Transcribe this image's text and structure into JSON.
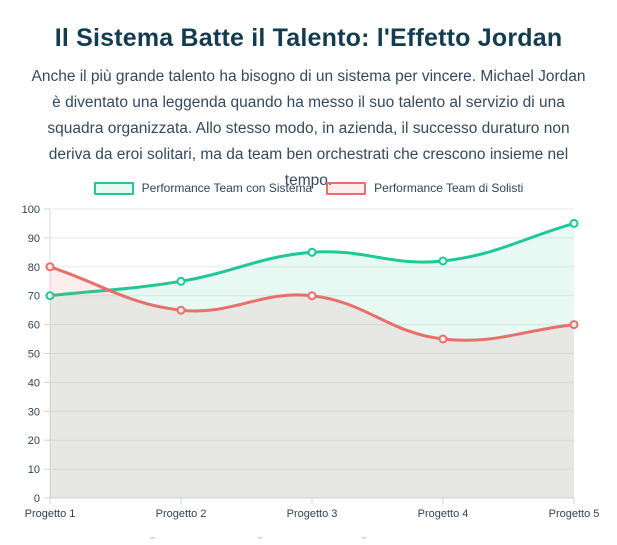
{
  "header": {
    "title": "Il Sistema Batte il Talento: l'Effetto Jordan",
    "description": "Anche il più grande talento ha bisogno di un sistema per vincere. Michael Jordan è diventato una leggenda quando ha messo il suo talento al servizio di una squadra organizzata. Allo stesso modo, in azienda, il successo duraturo non deriva da eroi solitari, ma da team ben orchestrati che crescono insieme nel tempo.",
    "title_color": "#143c50",
    "body_text_color": "#34495e"
  },
  "chart_data": {
    "type": "line",
    "categories": [
      "Progetto 1",
      "Progetto 2",
      "Progetto 3",
      "Progetto 4",
      "Progetto 5"
    ],
    "series": [
      {
        "name": "Performance Team con Sistema",
        "color": "#1ec997",
        "fill_color": "rgba(32,201,151,0.10)",
        "point_center_color": "#e9faf5",
        "values": [
          70,
          75,
          85,
          82,
          95
        ]
      },
      {
        "name": "Performance Team di Solisti",
        "color": "#e8706a",
        "fill_color": "rgba(232,112,106,0.12)",
        "point_center_color": "#fdeeed",
        "values": [
          80,
          65,
          70,
          55,
          60
        ]
      }
    ],
    "ylim": [
      0,
      100
    ],
    "ytick_step": 10,
    "ytick_labels": [
      "0",
      "10",
      "20",
      "30",
      "40",
      "50",
      "60",
      "70",
      "80",
      "90",
      "100"
    ],
    "grid": true,
    "legend_position": "top",
    "line_tension": 0.4,
    "area_fill": true,
    "colors": {
      "grid_line": "#e8eaea",
      "axis_line": "#d6d9db",
      "tick_mark": "#cfd4d8",
      "axis_text": "#2f4458"
    }
  }
}
